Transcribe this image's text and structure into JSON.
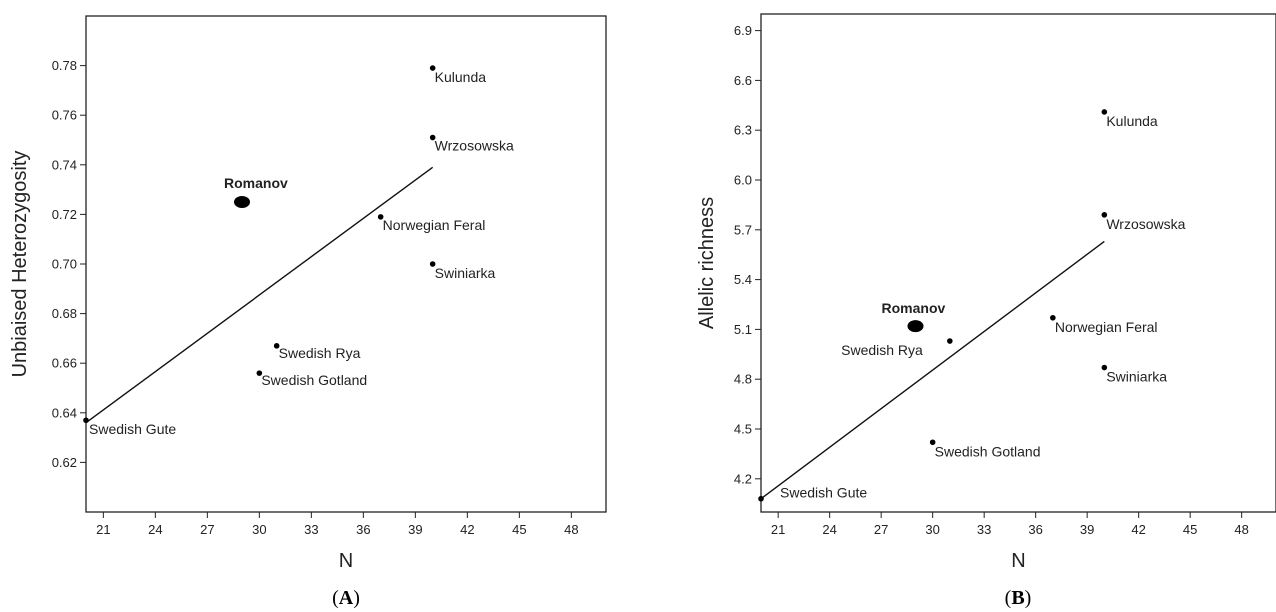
{
  "chart_data": [
    {
      "type": "scatter",
      "panel_label": "A",
      "xlabel": "N",
      "ylabel": "Unbiaised Heterozygosity",
      "xlim": [
        20,
        50
      ],
      "ylim": [
        0.6,
        0.8
      ],
      "xticks": [
        21,
        24,
        27,
        30,
        33,
        36,
        39,
        42,
        45,
        48
      ],
      "yticks": [
        0.62,
        0.64,
        0.66,
        0.68,
        0.7,
        0.72,
        0.74,
        0.76,
        0.78
      ],
      "ytick_decimals": 2,
      "points": [
        {
          "label": "Kulunda",
          "x": 40,
          "y": 0.779
        },
        {
          "label": "Wrzosowska",
          "x": 40,
          "y": 0.751
        },
        {
          "label": "Romanov",
          "x": 29,
          "y": 0.725,
          "highlight": true
        },
        {
          "label": "Norwegian Feral",
          "x": 37,
          "y": 0.719
        },
        {
          "label": "Swiniarka",
          "x": 40,
          "y": 0.7
        },
        {
          "label": "Swedish Rya",
          "x": 31,
          "y": 0.667
        },
        {
          "label": "Swedish Gotland",
          "x": 30,
          "y": 0.656
        },
        {
          "label": "Swedish Gute",
          "x": 20,
          "y": 0.637
        }
      ],
      "trend_line": {
        "x": [
          20,
          40
        ],
        "y": [
          0.636,
          0.739
        ]
      },
      "grid": false,
      "legend": "none"
    },
    {
      "type": "scatter",
      "panel_label": "B",
      "xlabel": "N",
      "ylabel": "Allelic richness",
      "xlim": [
        20,
        50
      ],
      "ylim": [
        4.0,
        7.0
      ],
      "xticks": [
        21,
        24,
        27,
        30,
        33,
        36,
        39,
        42,
        45,
        48
      ],
      "yticks": [
        4.2,
        4.5,
        4.8,
        5.1,
        5.4,
        5.7,
        6.0,
        6.3,
        6.6,
        6.9
      ],
      "ytick_decimals": 1,
      "points": [
        {
          "label": "Kulunda",
          "x": 40,
          "y": 6.41
        },
        {
          "label": "Wrzosowska",
          "x": 40,
          "y": 5.79
        },
        {
          "label": "Norwegian Feral",
          "x": 37,
          "y": 5.17
        },
        {
          "label": "Romanov",
          "x": 29,
          "y": 5.12,
          "highlight": true
        },
        {
          "label": "Swedish Rya",
          "x": 31,
          "y": 5.03
        },
        {
          "label": "Swiniarka",
          "x": 40,
          "y": 4.87
        },
        {
          "label": "Swedish Gotland",
          "x": 30,
          "y": 4.42
        },
        {
          "label": "Swedish Gute",
          "x": 20,
          "y": 4.08
        }
      ],
      "trend_line": {
        "x": [
          20,
          40
        ],
        "y": [
          4.08,
          5.63
        ]
      },
      "grid": false,
      "legend": "none"
    }
  ]
}
